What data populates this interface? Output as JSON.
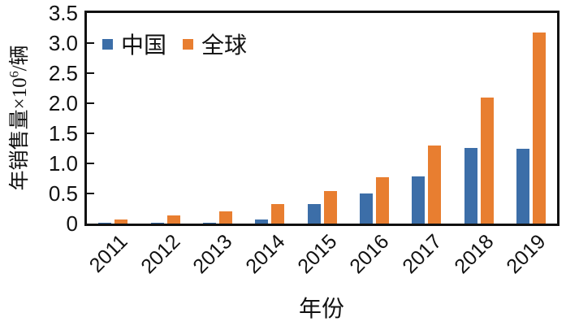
{
  "chart_data": {
    "type": "bar",
    "title": "",
    "categories": [
      "2011",
      "2012",
      "2013",
      "2014",
      "2015",
      "2016",
      "2017",
      "2018",
      "2019"
    ],
    "series": [
      {
        "name": "中国",
        "color": "#3c6ea8",
        "values": [
          0.01,
          0.02,
          0.02,
          0.07,
          0.33,
          0.5,
          0.78,
          1.26,
          1.24
        ]
      },
      {
        "name": "全球",
        "color": "#e87e30",
        "values": [
          0.07,
          0.13,
          0.2,
          0.32,
          0.54,
          0.77,
          1.3,
          2.1,
          3.18
        ]
      }
    ],
    "xlabel": "年份",
    "ylabel": "年销售量×10⁶/辆",
    "ylabel_parts": {
      "prefix": "年销售量×10",
      "sup": "6",
      "suffix": "/辆"
    },
    "ylim": [
      0,
      3.5
    ],
    "yticks": [
      {
        "value": 3.5,
        "label": "3.5"
      },
      {
        "value": 3.0,
        "label": "3.0"
      },
      {
        "value": 2.5,
        "label": "2.5"
      },
      {
        "value": 2.0,
        "label": "2.0"
      },
      {
        "value": 1.5,
        "label": "1.5"
      },
      {
        "value": 1.0,
        "label": "1.0"
      },
      {
        "value": 0.5,
        "label": "0.5"
      },
      {
        "value": 0,
        "label": "0"
      }
    ],
    "grid": false,
    "legend_position": "top-left-inside",
    "frame_color": "#111111",
    "background": "#ffffff"
  }
}
